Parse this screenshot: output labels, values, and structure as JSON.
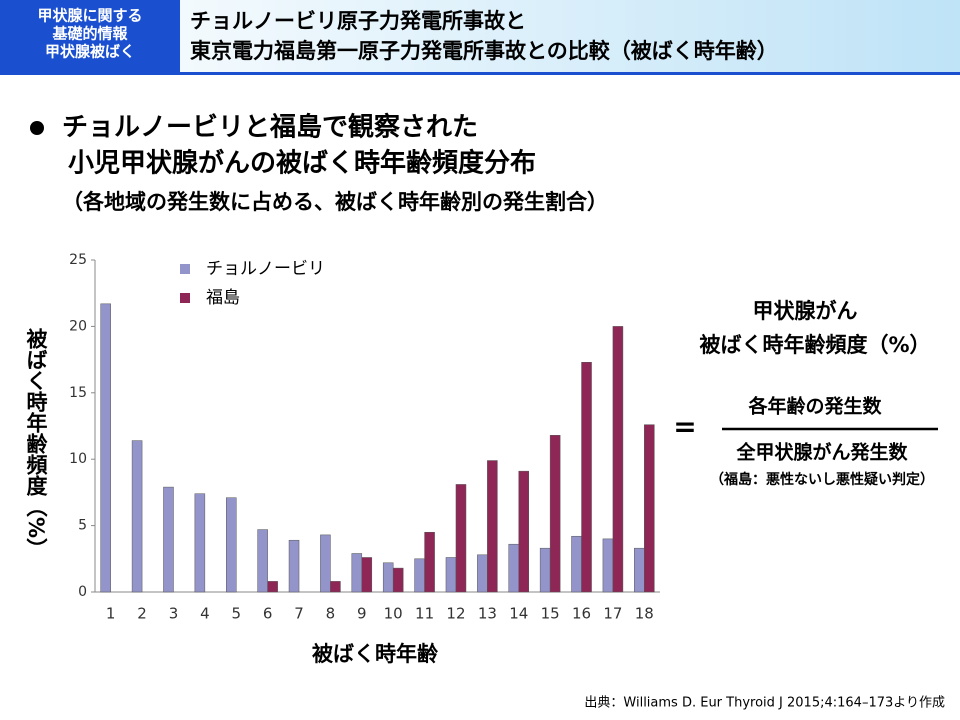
{
  "header": {
    "badge": [
      "甲状腺に関する",
      "基礎的情報",
      "甲状腺被ばく"
    ],
    "title": [
      "チョルノービリ原子力発電所事故と",
      "東京電力福島第一原子力発電所事故との比較（被ばく時年齢）"
    ]
  },
  "bullet": [
    "チョルノービリと福島で観察された",
    "小児甲状腺がんの被ばく時年齢頻度分布",
    "（各地域の発生数に占める、被ばく時年齢別の発生割合）"
  ],
  "formula": {
    "lhs": [
      "甲状腺がん",
      "被ばく時年齢頻度（%）"
    ],
    "equals": "=",
    "numerator": "各年齢の発生数",
    "denominator": "全甲状腺がん発生数",
    "note": "（福島：悪性ないし悪性疑い判定）"
  },
  "source": "出典：Williams D. Eur Thyroid J 2015;4:164–173より作成",
  "chart_data": {
    "type": "bar",
    "x_label": "被ばく時年齢",
    "y_label": "被ばく時年齢頻度（%）",
    "categories": [
      "1",
      "2",
      "3",
      "4",
      "5",
      "6",
      "7",
      "8",
      "9",
      "10",
      "11",
      "12",
      "13",
      "14",
      "15",
      "16",
      "17",
      "18"
    ],
    "series": [
      {
        "name": "チョルノービリ",
        "color": "#9394c9",
        "values": [
          21.7,
          11.4,
          7.9,
          7.4,
          7.1,
          4.7,
          3.9,
          4.3,
          2.9,
          2.2,
          2.5,
          2.6,
          2.8,
          3.6,
          3.3,
          4.2,
          4.0,
          3.3
        ]
      },
      {
        "name": "福島",
        "color": "#8e2756",
        "values": [
          0,
          0,
          0,
          0,
          0,
          0.8,
          0,
          0.8,
          2.6,
          1.8,
          4.5,
          8.1,
          9.9,
          9.1,
          11.8,
          17.3,
          20.0,
          12.6
        ]
      }
    ],
    "ylim": [
      0,
      25
    ],
    "yticks": [
      0,
      5,
      10,
      15,
      20,
      25
    ],
    "grid": false
  }
}
